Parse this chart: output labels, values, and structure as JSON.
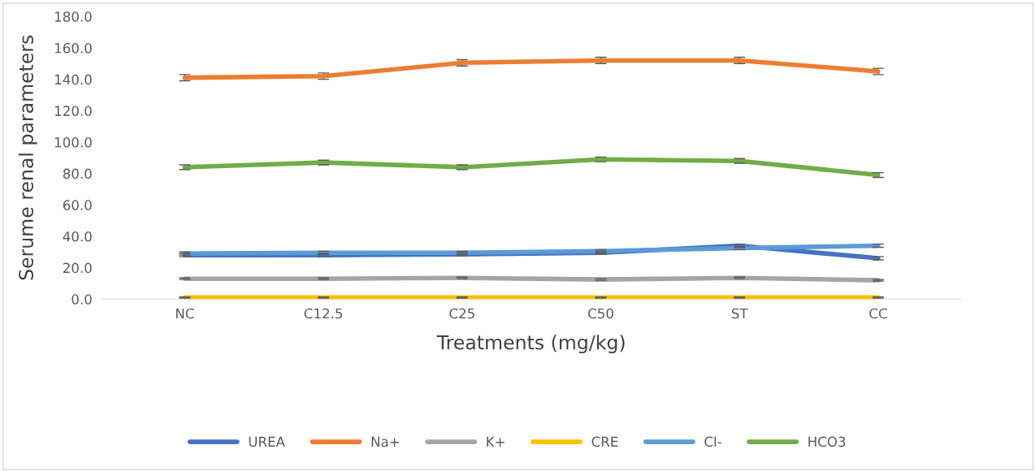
{
  "chart_data": {
    "type": "line",
    "xlabel": "Treatments (mg/kg)",
    "ylabel": "Serume renal parameters",
    "categories": [
      "NC",
      "C12.5",
      "C25",
      "C50",
      "ST",
      "CC"
    ],
    "series": [
      {
        "name": "UREA",
        "color": "#4472c4",
        "values": [
          28,
          28,
          28.5,
          29.5,
          34,
          26
        ],
        "errors": [
          1,
          1,
          1,
          1,
          1,
          1
        ]
      },
      {
        "name": "Na+",
        "color": "#ed7d31",
        "values": [
          141,
          142,
          150.5,
          152,
          152,
          145
        ],
        "errors": [
          2,
          2,
          2,
          2,
          2,
          2
        ]
      },
      {
        "name": "K+",
        "color": "#a5a5a5",
        "values": [
          13,
          13,
          13.5,
          12.5,
          13.5,
          12
        ],
        "errors": [
          0.5,
          0.5,
          0.5,
          0.5,
          0.5,
          0.5
        ]
      },
      {
        "name": "CRE",
        "color": "#ffc000",
        "values": [
          1,
          1,
          1,
          1,
          1,
          1
        ],
        "errors": [
          0.3,
          0.3,
          0.3,
          0.3,
          0.3,
          0.3
        ]
      },
      {
        "name": "Cl-",
        "color": "#5b9bd5",
        "values": [
          29,
          29.5,
          29.5,
          30.5,
          32.5,
          34
        ],
        "errors": [
          1,
          1,
          1,
          1,
          1,
          1
        ]
      },
      {
        "name": "HCO3",
        "color": "#70ad47",
        "values": [
          84,
          87,
          84,
          89,
          88,
          79
        ],
        "errors": [
          1.5,
          1.5,
          1.5,
          1.5,
          1.5,
          1.5
        ]
      }
    ],
    "ylim": [
      0,
      180
    ],
    "yticks": [
      {
        "value": 0,
        "label": "0.0"
      },
      {
        "value": 20,
        "label": "20.0"
      },
      {
        "value": 40,
        "label": "40.0"
      },
      {
        "value": 60,
        "label": "60.0"
      },
      {
        "value": 80,
        "label": "80.0"
      },
      {
        "value": 100,
        "label": "100.0"
      },
      {
        "value": 120,
        "label": "120.0"
      },
      {
        "value": 140,
        "label": "140.0"
      },
      {
        "value": 160,
        "label": "160.0"
      },
      {
        "value": 180,
        "label": "180.0"
      }
    ],
    "legend": "bottom",
    "grid": false,
    "marker": "none",
    "line_style": "solid"
  }
}
